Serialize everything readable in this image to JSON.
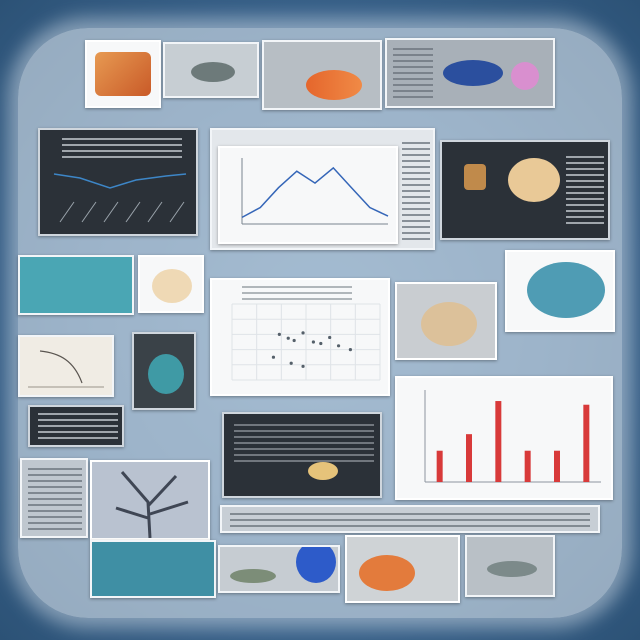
{
  "scene": {
    "description_text": "",
    "colors": {
      "background": "#3c6690",
      "panel_frame": "#f2f5f8",
      "accent_red": "#d83a3a",
      "accent_teal": "#3f9aa5",
      "accent_orange": "#e37b3c",
      "accent_blue": "#2d5bc9",
      "dark_panel": "#2b3138"
    }
  },
  "line_chart": {
    "peaks": [
      0.1,
      0.25,
      0.55,
      0.8,
      0.62,
      0.85,
      0.55,
      0.25,
      0.12
    ]
  },
  "bar_chart": {
    "values": [
      0.34,
      0.52,
      0.88,
      0.34,
      0.34,
      0.84
    ]
  },
  "scatter": {
    "points": [
      [
        0.32,
        0.4
      ],
      [
        0.38,
        0.45
      ],
      [
        0.42,
        0.48
      ],
      [
        0.48,
        0.38
      ],
      [
        0.55,
        0.5
      ],
      [
        0.6,
        0.52
      ],
      [
        0.66,
        0.44
      ],
      [
        0.72,
        0.55
      ],
      [
        0.4,
        0.78
      ],
      [
        0.48,
        0.82
      ],
      [
        0.28,
        0.7
      ],
      [
        0.8,
        0.6
      ]
    ]
  },
  "icons": [
    "fish-photo-icon",
    "organ-specimen-icon",
    "bone-specimen-icon",
    "coral-specimen-icon",
    "blue-specimen-icon"
  ]
}
